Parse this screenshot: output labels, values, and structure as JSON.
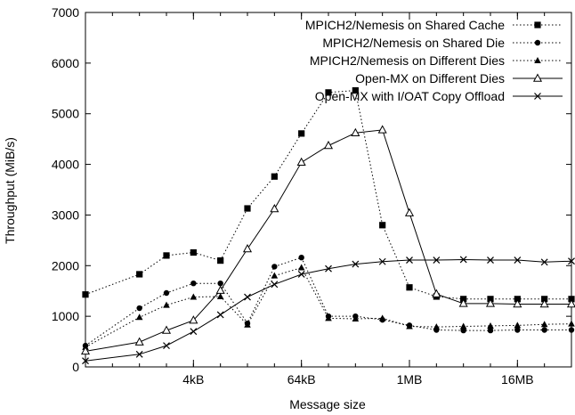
{
  "chart_data": {
    "type": "line",
    "xlabel": "Message size",
    "ylabel": "Throughput (MiB/s)",
    "x_scale": "log2",
    "x_unit": "bytes",
    "xlim_bytes": [
      256,
      67108864
    ],
    "ylim": [
      0,
      7000
    ],
    "yticks": [
      0,
      1000,
      2000,
      3000,
      4000,
      5000,
      6000,
      7000
    ],
    "xticks": [
      {
        "label": "4kB",
        "bytes": 4096
      },
      {
        "label": "64kB",
        "bytes": 65536
      },
      {
        "label": "1MB",
        "bytes": 1048576
      },
      {
        "label": "16MB",
        "bytes": 16777216
      }
    ],
    "grid": false,
    "legend_position": "top-right",
    "series": [
      {
        "name": "MPICH2/Nemesis on Shared Cache",
        "marker": "square-filled",
        "line": "dotted",
        "x_bytes": [
          256,
          1024,
          2048,
          4096,
          8192,
          16384,
          32768,
          65536,
          131072,
          262144,
          524288,
          1048576,
          2097152,
          4194304,
          8388608,
          16777216,
          33554432,
          67108864
        ],
        "values": [
          1430,
          1830,
          2200,
          2260,
          2100,
          3130,
          3760,
          4610,
          5420,
          5460,
          2800,
          1570,
          1390,
          1340,
          1340,
          1340,
          1340,
          1340
        ]
      },
      {
        "name": "MPICH2/Nemesis on Shared Die",
        "marker": "circle-filled",
        "line": "dotted",
        "x_bytes": [
          256,
          1024,
          2048,
          4096,
          8192,
          16384,
          32768,
          65536,
          131072,
          262144,
          524288,
          1048576,
          2097152,
          4194304,
          8388608,
          16777216,
          33554432,
          67108864
        ],
        "values": [
          420,
          1160,
          1460,
          1650,
          1650,
          860,
          1980,
          2160,
          1000,
          1000,
          930,
          820,
          730,
          720,
          720,
          730,
          730,
          730
        ]
      },
      {
        "name": "MPICH2/Nemesis on Different Dies",
        "marker": "triangle-filled",
        "line": "dotted",
        "x_bytes": [
          256,
          1024,
          2048,
          4096,
          8192,
          16384,
          32768,
          65536,
          131072,
          262144,
          524288,
          1048576,
          2097152,
          4194304,
          8388608,
          16777216,
          33554432,
          67108864
        ],
        "values": [
          390,
          980,
          1220,
          1380,
          1390,
          830,
          1800,
          1960,
          960,
          950,
          960,
          800,
          790,
          800,
          810,
          820,
          840,
          850
        ]
      },
      {
        "name": "Open-MX on Different Dies",
        "marker": "triangle-open",
        "line": "solid",
        "x_bytes": [
          256,
          1024,
          2048,
          4096,
          8192,
          16384,
          32768,
          65536,
          131072,
          262144,
          524288,
          1048576,
          2097152,
          4194304,
          8388608,
          16777216,
          33554432,
          67108864
        ],
        "values": [
          310,
          490,
          720,
          920,
          1510,
          2330,
          3120,
          4040,
          4370,
          4620,
          4680,
          3040,
          1440,
          1250,
          1250,
          1240,
          1240,
          1240
        ]
      },
      {
        "name": "Open-MX with I/OAT Copy Offload",
        "marker": "x",
        "line": "solid",
        "x_bytes": [
          256,
          1024,
          2048,
          4096,
          8192,
          16384,
          32768,
          65536,
          131072,
          262144,
          524288,
          1048576,
          2097152,
          4194304,
          8388608,
          16777216,
          33554432,
          67108864
        ],
        "values": [
          120,
          250,
          420,
          700,
          1030,
          1380,
          1630,
          1830,
          1940,
          2030,
          2080,
          2110,
          2110,
          2120,
          2110,
          2110,
          2070,
          2090
        ]
      }
    ]
  }
}
